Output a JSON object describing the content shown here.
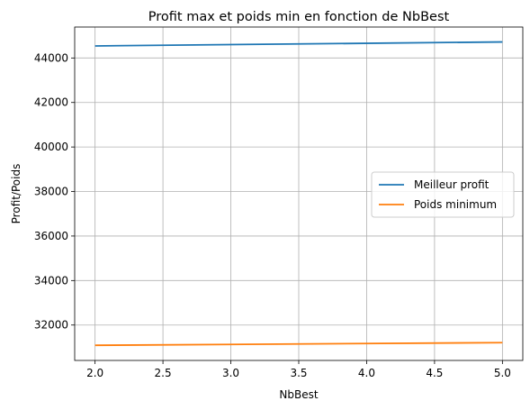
{
  "chart_data": {
    "type": "line",
    "title": "Profit max et poids min en fonction de NbBest",
    "xlabel": "NbBest",
    "ylabel": "Profit/Poids",
    "x": [
      2.0,
      5.0
    ],
    "series": [
      {
        "name": "Meilleur profit",
        "color": "#1f77b4",
        "values": [
          44540,
          44720
        ]
      },
      {
        "name": "Poids minimum",
        "color": "#ff7f0e",
        "values": [
          31090,
          31210
        ]
      }
    ],
    "xlim": [
      1.85,
      5.15
    ],
    "ylim": [
      30410,
      45390
    ],
    "xticks": [
      "2.0",
      "2.5",
      "3.0",
      "3.5",
      "4.0",
      "4.5",
      "5.0"
    ],
    "yticks": [
      "32000",
      "34000",
      "36000",
      "38000",
      "40000",
      "42000",
      "44000"
    ],
    "grid": true,
    "legend_position": "center-right"
  }
}
